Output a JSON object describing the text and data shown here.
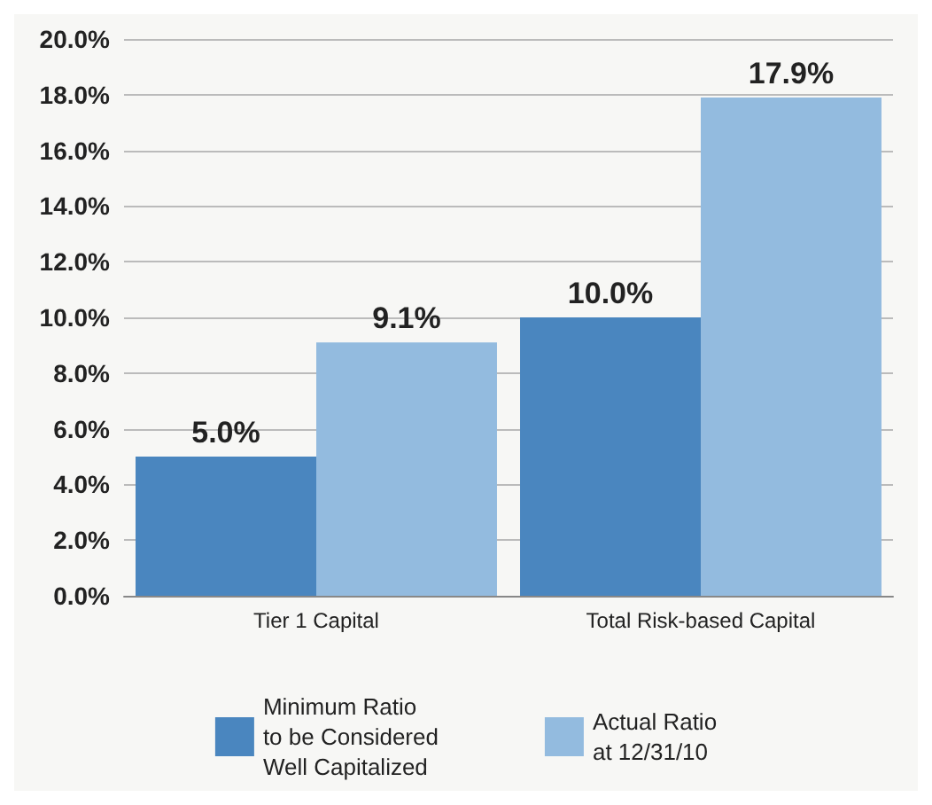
{
  "chart_data": {
    "type": "bar",
    "categories": [
      "Tier 1 Capital",
      "Total Risk-based Capital"
    ],
    "series": [
      {
        "name": "Minimum Ratio\nto be Considered\nWell Capitalized",
        "color": "#4a86bf",
        "values": [
          5.0,
          10.0
        ],
        "value_labels": [
          "5.0%",
          "10.0%"
        ]
      },
      {
        "name": "Actual Ratio\nat 12/31/10",
        "color": "#93bbdf",
        "values": [
          9.1,
          17.9
        ],
        "value_labels": [
          "9.1%",
          "17.9%"
        ]
      }
    ],
    "ylim": [
      0,
      20
    ],
    "yticks": [
      {
        "value": 0,
        "label": "0.0%"
      },
      {
        "value": 2,
        "label": "2.0%"
      },
      {
        "value": 4,
        "label": "4.0%"
      },
      {
        "value": 6,
        "label": "6.0%"
      },
      {
        "value": 8,
        "label": "8.0%"
      },
      {
        "value": 10,
        "label": "10.0%"
      },
      {
        "value": 12,
        "label": "12.0%"
      },
      {
        "value": 14,
        "label": "14.0%"
      },
      {
        "value": 16,
        "label": "16.0%"
      },
      {
        "value": 18,
        "label": "18.0%"
      },
      {
        "value": 20,
        "label": "20.0%"
      }
    ],
    "grid": "y",
    "legend": "bottom"
  }
}
